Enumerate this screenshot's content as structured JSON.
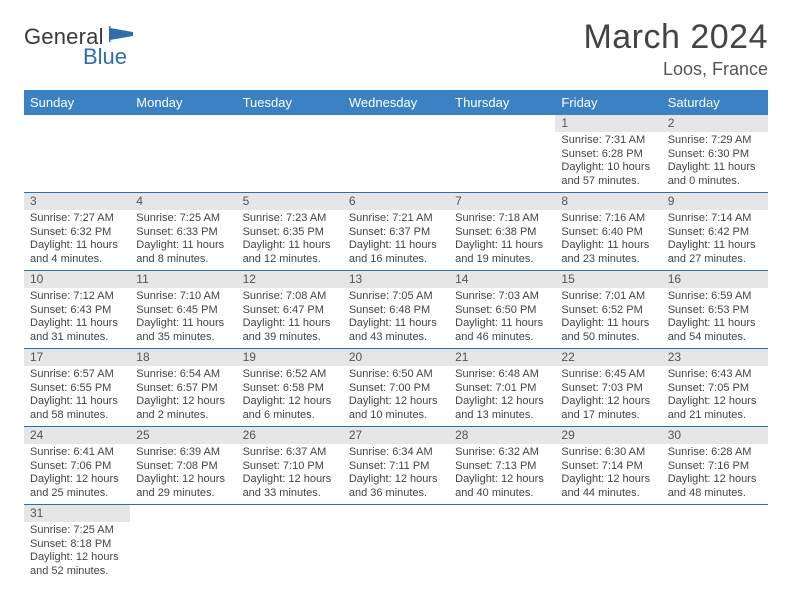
{
  "logo": {
    "main": "General",
    "sub": "Blue"
  },
  "title": "March 2024",
  "location": "Loos, France",
  "colors": {
    "header_bg": "#3b82c4",
    "header_fg": "#ffffff",
    "daynum_bg": "#e6e6e6",
    "border": "#2f6fa7",
    "logo_sub": "#2f6fa7",
    "text": "#444444"
  },
  "weekdays": [
    "Sunday",
    "Monday",
    "Tuesday",
    "Wednesday",
    "Thursday",
    "Friday",
    "Saturday"
  ],
  "weeks": [
    [
      null,
      null,
      null,
      null,
      null,
      {
        "n": "1",
        "sunrise": "Sunrise: 7:31 AM",
        "sunset": "Sunset: 6:28 PM",
        "day1": "Daylight: 10 hours",
        "day2": "and 57 minutes."
      },
      {
        "n": "2",
        "sunrise": "Sunrise: 7:29 AM",
        "sunset": "Sunset: 6:30 PM",
        "day1": "Daylight: 11 hours",
        "day2": "and 0 minutes."
      }
    ],
    [
      {
        "n": "3",
        "sunrise": "Sunrise: 7:27 AM",
        "sunset": "Sunset: 6:32 PM",
        "day1": "Daylight: 11 hours",
        "day2": "and 4 minutes."
      },
      {
        "n": "4",
        "sunrise": "Sunrise: 7:25 AM",
        "sunset": "Sunset: 6:33 PM",
        "day1": "Daylight: 11 hours",
        "day2": "and 8 minutes."
      },
      {
        "n": "5",
        "sunrise": "Sunrise: 7:23 AM",
        "sunset": "Sunset: 6:35 PM",
        "day1": "Daylight: 11 hours",
        "day2": "and 12 minutes."
      },
      {
        "n": "6",
        "sunrise": "Sunrise: 7:21 AM",
        "sunset": "Sunset: 6:37 PM",
        "day1": "Daylight: 11 hours",
        "day2": "and 16 minutes."
      },
      {
        "n": "7",
        "sunrise": "Sunrise: 7:18 AM",
        "sunset": "Sunset: 6:38 PM",
        "day1": "Daylight: 11 hours",
        "day2": "and 19 minutes."
      },
      {
        "n": "8",
        "sunrise": "Sunrise: 7:16 AM",
        "sunset": "Sunset: 6:40 PM",
        "day1": "Daylight: 11 hours",
        "day2": "and 23 minutes."
      },
      {
        "n": "9",
        "sunrise": "Sunrise: 7:14 AM",
        "sunset": "Sunset: 6:42 PM",
        "day1": "Daylight: 11 hours",
        "day2": "and 27 minutes."
      }
    ],
    [
      {
        "n": "10",
        "sunrise": "Sunrise: 7:12 AM",
        "sunset": "Sunset: 6:43 PM",
        "day1": "Daylight: 11 hours",
        "day2": "and 31 minutes."
      },
      {
        "n": "11",
        "sunrise": "Sunrise: 7:10 AM",
        "sunset": "Sunset: 6:45 PM",
        "day1": "Daylight: 11 hours",
        "day2": "and 35 minutes."
      },
      {
        "n": "12",
        "sunrise": "Sunrise: 7:08 AM",
        "sunset": "Sunset: 6:47 PM",
        "day1": "Daylight: 11 hours",
        "day2": "and 39 minutes."
      },
      {
        "n": "13",
        "sunrise": "Sunrise: 7:05 AM",
        "sunset": "Sunset: 6:48 PM",
        "day1": "Daylight: 11 hours",
        "day2": "and 43 minutes."
      },
      {
        "n": "14",
        "sunrise": "Sunrise: 7:03 AM",
        "sunset": "Sunset: 6:50 PM",
        "day1": "Daylight: 11 hours",
        "day2": "and 46 minutes."
      },
      {
        "n": "15",
        "sunrise": "Sunrise: 7:01 AM",
        "sunset": "Sunset: 6:52 PM",
        "day1": "Daylight: 11 hours",
        "day2": "and 50 minutes."
      },
      {
        "n": "16",
        "sunrise": "Sunrise: 6:59 AM",
        "sunset": "Sunset: 6:53 PM",
        "day1": "Daylight: 11 hours",
        "day2": "and 54 minutes."
      }
    ],
    [
      {
        "n": "17",
        "sunrise": "Sunrise: 6:57 AM",
        "sunset": "Sunset: 6:55 PM",
        "day1": "Daylight: 11 hours",
        "day2": "and 58 minutes."
      },
      {
        "n": "18",
        "sunrise": "Sunrise: 6:54 AM",
        "sunset": "Sunset: 6:57 PM",
        "day1": "Daylight: 12 hours",
        "day2": "and 2 minutes."
      },
      {
        "n": "19",
        "sunrise": "Sunrise: 6:52 AM",
        "sunset": "Sunset: 6:58 PM",
        "day1": "Daylight: 12 hours",
        "day2": "and 6 minutes."
      },
      {
        "n": "20",
        "sunrise": "Sunrise: 6:50 AM",
        "sunset": "Sunset: 7:00 PM",
        "day1": "Daylight: 12 hours",
        "day2": "and 10 minutes."
      },
      {
        "n": "21",
        "sunrise": "Sunrise: 6:48 AM",
        "sunset": "Sunset: 7:01 PM",
        "day1": "Daylight: 12 hours",
        "day2": "and 13 minutes."
      },
      {
        "n": "22",
        "sunrise": "Sunrise: 6:45 AM",
        "sunset": "Sunset: 7:03 PM",
        "day1": "Daylight: 12 hours",
        "day2": "and 17 minutes."
      },
      {
        "n": "23",
        "sunrise": "Sunrise: 6:43 AM",
        "sunset": "Sunset: 7:05 PM",
        "day1": "Daylight: 12 hours",
        "day2": "and 21 minutes."
      }
    ],
    [
      {
        "n": "24",
        "sunrise": "Sunrise: 6:41 AM",
        "sunset": "Sunset: 7:06 PM",
        "day1": "Daylight: 12 hours",
        "day2": "and 25 minutes."
      },
      {
        "n": "25",
        "sunrise": "Sunrise: 6:39 AM",
        "sunset": "Sunset: 7:08 PM",
        "day1": "Daylight: 12 hours",
        "day2": "and 29 minutes."
      },
      {
        "n": "26",
        "sunrise": "Sunrise: 6:37 AM",
        "sunset": "Sunset: 7:10 PM",
        "day1": "Daylight: 12 hours",
        "day2": "and 33 minutes."
      },
      {
        "n": "27",
        "sunrise": "Sunrise: 6:34 AM",
        "sunset": "Sunset: 7:11 PM",
        "day1": "Daylight: 12 hours",
        "day2": "and 36 minutes."
      },
      {
        "n": "28",
        "sunrise": "Sunrise: 6:32 AM",
        "sunset": "Sunset: 7:13 PM",
        "day1": "Daylight: 12 hours",
        "day2": "and 40 minutes."
      },
      {
        "n": "29",
        "sunrise": "Sunrise: 6:30 AM",
        "sunset": "Sunset: 7:14 PM",
        "day1": "Daylight: 12 hours",
        "day2": "and 44 minutes."
      },
      {
        "n": "30",
        "sunrise": "Sunrise: 6:28 AM",
        "sunset": "Sunset: 7:16 PM",
        "day1": "Daylight: 12 hours",
        "day2": "and 48 minutes."
      }
    ],
    [
      {
        "n": "31",
        "sunrise": "Sunrise: 7:25 AM",
        "sunset": "Sunset: 8:18 PM",
        "day1": "Daylight: 12 hours",
        "day2": "and 52 minutes."
      },
      null,
      null,
      null,
      null,
      null,
      null
    ]
  ]
}
